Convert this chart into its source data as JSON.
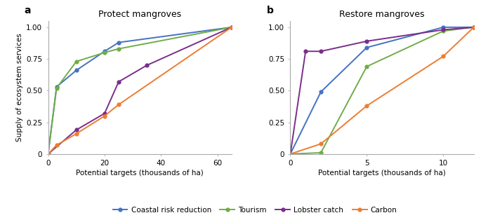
{
  "panel_a": {
    "title": "Protect mangroves",
    "xlabel": "Potential targets (thousands of ha)",
    "ylabel": "Supply of ecosystem services",
    "xlim": [
      0,
      65
    ],
    "ylim": [
      0,
      1.05
    ],
    "xticks": [
      0,
      20,
      40,
      60
    ],
    "yticks": [
      0,
      0.25,
      0.5,
      0.75,
      1.0
    ],
    "yticklabels": [
      "0",
      "0.25",
      "0.50",
      "0.75",
      "1.00"
    ],
    "series": {
      "Coastal risk reduction": {
        "x": [
          0,
          3,
          10,
          20,
          25,
          65
        ],
        "y": [
          0,
          0.53,
          0.66,
          0.81,
          0.88,
          1.0
        ],
        "color": "#4472c4",
        "marker": "o"
      },
      "Tourism": {
        "x": [
          0,
          3,
          10,
          20,
          25,
          65
        ],
        "y": [
          0,
          0.52,
          0.73,
          0.8,
          0.83,
          1.0
        ],
        "color": "#70ad47",
        "marker": "o"
      },
      "Lobster catch": {
        "x": [
          0,
          10,
          20,
          25,
          35,
          65
        ],
        "y": [
          0,
          0.19,
          0.32,
          0.57,
          0.7,
          1.0
        ],
        "color": "#7b2d8b",
        "marker": "o"
      },
      "Carbon": {
        "x": [
          0,
          3,
          10,
          20,
          25,
          65
        ],
        "y": [
          0,
          0.07,
          0.16,
          0.3,
          0.39,
          1.0
        ],
        "color": "#ed7d31",
        "marker": "o"
      }
    }
  },
  "panel_b": {
    "title": "Restore mangroves",
    "xlabel": "Potential targets (thousands of ha)",
    "xlim": [
      0,
      12
    ],
    "ylim": [
      0,
      1.05
    ],
    "xticks": [
      0,
      5,
      10
    ],
    "yticks": [
      0,
      0.25,
      0.5,
      0.75,
      1.0
    ],
    "yticklabels": [
      "0",
      "0.25",
      "0.50",
      "0.75",
      "1.00"
    ],
    "series": {
      "Coastal risk reduction": {
        "x": [
          0,
          2,
          5,
          10,
          12
        ],
        "y": [
          0,
          0.49,
          0.84,
          1.0,
          1.0
        ],
        "color": "#4472c4",
        "marker": "o"
      },
      "Tourism": {
        "x": [
          0,
          2,
          5,
          10,
          12
        ],
        "y": [
          0,
          0.01,
          0.69,
          0.97,
          1.0
        ],
        "color": "#70ad47",
        "marker": "o"
      },
      "Lobster catch": {
        "x": [
          0,
          1,
          2,
          5,
          10,
          12
        ],
        "y": [
          0,
          0.81,
          0.81,
          0.89,
          0.98,
          1.0
        ],
        "color": "#7b2d8b",
        "marker": "o"
      },
      "Carbon": {
        "x": [
          0,
          2,
          5,
          10,
          12
        ],
        "y": [
          0,
          0.08,
          0.38,
          0.77,
          1.0
        ],
        "color": "#ed7d31",
        "marker": "o"
      }
    }
  },
  "legend_order": [
    "Coastal risk reduction",
    "Tourism",
    "Lobster catch",
    "Carbon"
  ],
  "label_fontsize": 7.5,
  "title_fontsize": 9,
  "tick_fontsize": 7.5,
  "linewidth": 1.4,
  "markersize": 3.5
}
